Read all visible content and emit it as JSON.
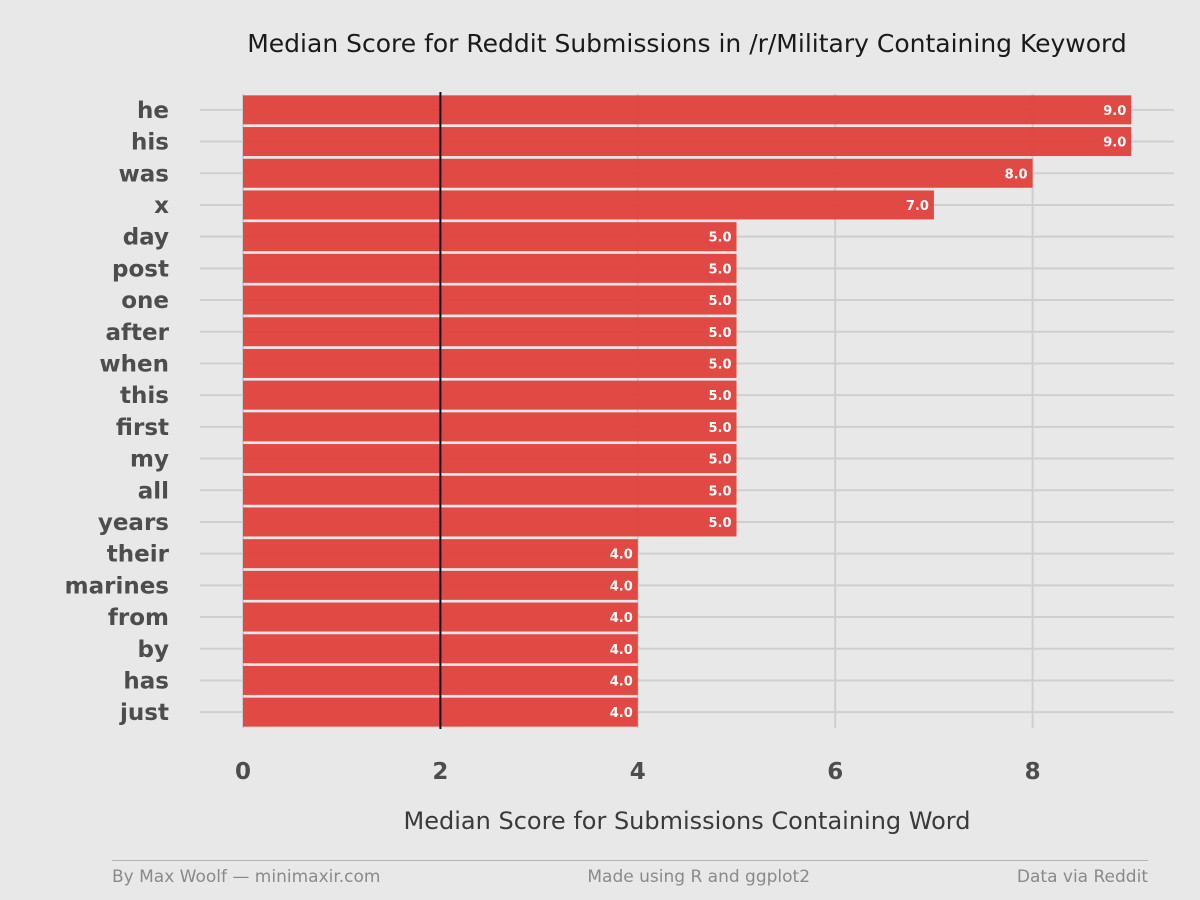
{
  "chart_data": {
    "type": "bar",
    "orientation": "horizontal",
    "title": "Median Score for Reddit Submissions in /r/Military Containing Keyword",
    "xlabel": "Median Score for Submissions Containing Word",
    "ylabel": "",
    "xlim": [
      0,
      9
    ],
    "xticks": [
      0,
      2,
      4,
      6,
      8
    ],
    "reference_line": 2,
    "grid": true,
    "bar_color": "#e0403c",
    "categories": [
      "he",
      "his",
      "was",
      "x",
      "day",
      "post",
      "one",
      "after",
      "when",
      "this",
      "first",
      "my",
      "all",
      "years",
      "their",
      "marines",
      "from",
      "by",
      "has",
      "just"
    ],
    "values": [
      9,
      9,
      8,
      7,
      5,
      5,
      5,
      5,
      5,
      5,
      5,
      5,
      5,
      5,
      4,
      4,
      4,
      4,
      4,
      4
    ],
    "value_labels": [
      "9.0",
      "9.0",
      "8.0",
      "7.0",
      "5.0",
      "5.0",
      "5.0",
      "5.0",
      "5.0",
      "5.0",
      "5.0",
      "5.0",
      "5.0",
      "5.0",
      "4.0",
      "4.0",
      "4.0",
      "4.0",
      "4.0",
      "4.0"
    ]
  },
  "footer": {
    "left": "By Max Woolf — minimaxir.com",
    "center": "Made using R and ggplot2",
    "right": "Data via Reddit"
  }
}
